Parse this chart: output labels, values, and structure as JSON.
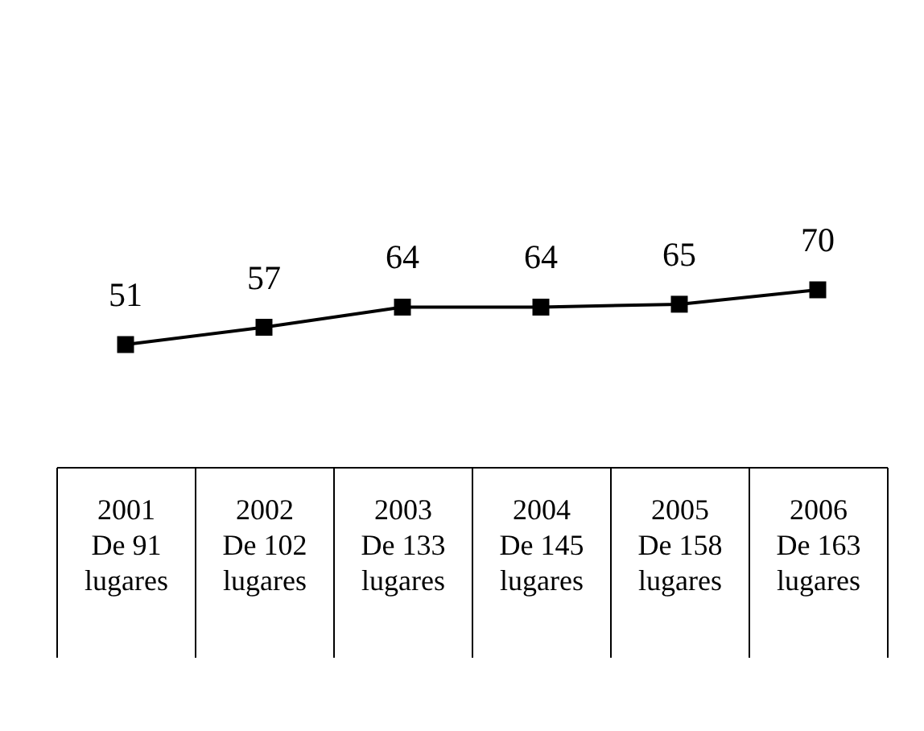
{
  "chart_data": {
    "type": "line",
    "categories": [
      "2001\n\nDe 91\nlugares",
      "2002\n\nDe 102\nlugares",
      "2003\n\nDe 133\nlugares",
      "2004\n\nDe 145\nlugares",
      "2005\n\nDe 158\nlugares",
      "2006\n\nDe 163\nlugares"
    ],
    "series": [
      {
        "color": "#000000",
        "values": [
          51,
          57,
          64,
          64,
          65,
          70
        ]
      }
    ],
    "marker": "square",
    "data_labels": true,
    "line_style": "solid"
  }
}
